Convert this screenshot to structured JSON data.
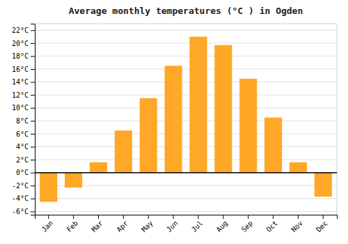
{
  "chart_data": {
    "type": "bar",
    "title": "Average monthly temperatures (°C ) in Ogden",
    "categories": [
      "Jan",
      "Feb",
      "Mar",
      "Apr",
      "May",
      "Jun",
      "Jul",
      "Aug",
      "Sep",
      "Oct",
      "Nov",
      "Dec"
    ],
    "values": [
      -4.5,
      -2.3,
      1.6,
      6.5,
      11.5,
      16.5,
      21.0,
      19.7,
      14.5,
      8.5,
      1.6,
      -3.7
    ],
    "color": "#FFA726",
    "ylim": [
      -6.5,
      23
    ],
    "yticks": [
      {
        "value": -6,
        "label": "-6°C"
      },
      {
        "value": -4,
        "label": "-4°C"
      },
      {
        "value": -2,
        "label": "-2°C"
      },
      {
        "value": 0,
        "label": "0°C"
      },
      {
        "value": 2,
        "label": "2°C"
      },
      {
        "value": 4,
        "label": "4°C"
      },
      {
        "value": 6,
        "label": "6°C"
      },
      {
        "value": 8,
        "label": "8°C"
      },
      {
        "value": 10,
        "label": "10°C"
      },
      {
        "value": 12,
        "label": "12°C"
      },
      {
        "value": 14,
        "label": "14°C"
      },
      {
        "value": 16,
        "label": "16°C"
      },
      {
        "value": 18,
        "label": "18°C"
      },
      {
        "value": 20,
        "label": "20°C"
      },
      {
        "value": 22,
        "label": "22°C"
      }
    ],
    "grid": true
  }
}
